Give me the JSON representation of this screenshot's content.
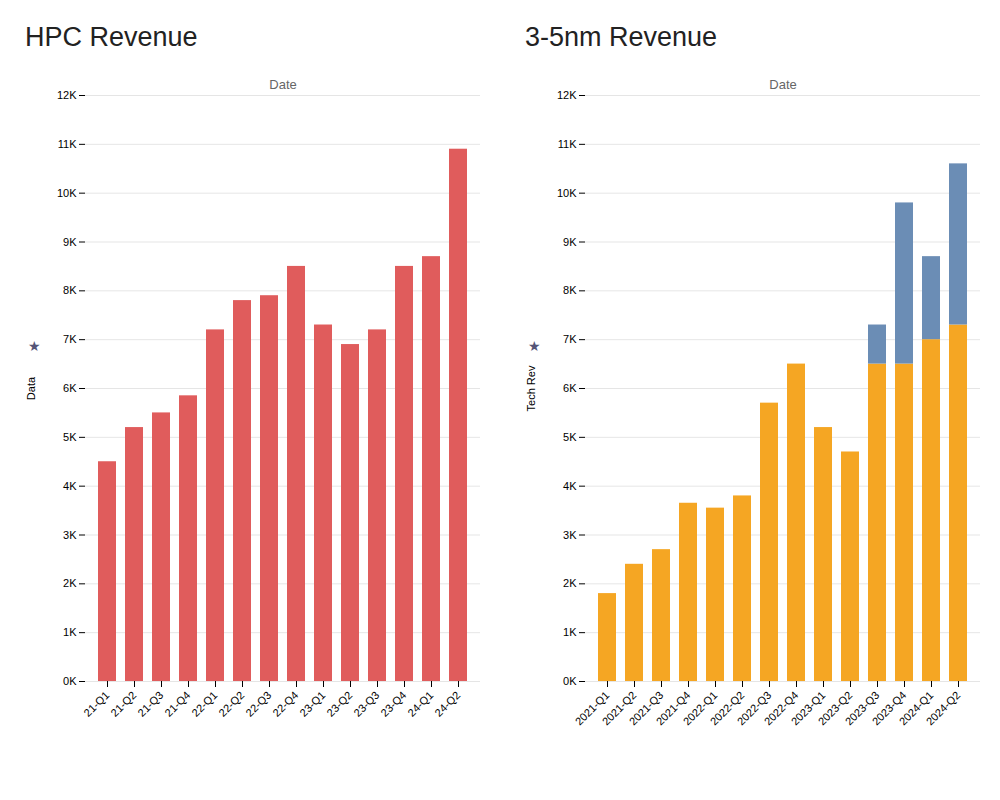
{
  "chart_data": [
    {
      "type": "bar",
      "title": "HPC Revenue",
      "xlabel": "Date",
      "ylabel": "Data",
      "annotations": [
        "★"
      ],
      "categories": [
        "21-Q1",
        "21-Q2",
        "21-Q3",
        "21-Q4",
        "22-Q1",
        "22-Q2",
        "22-Q3",
        "22-Q4",
        "23-Q1",
        "23-Q2",
        "23-Q3",
        "23-Q4",
        "24-Q1",
        "24-Q2"
      ],
      "values": [
        4500,
        5200,
        5500,
        5850,
        7200,
        7800,
        7900,
        8500,
        7300,
        6900,
        7200,
        8500,
        8700,
        10900
      ],
      "color": "#E05C5C",
      "ylim": [
        0,
        12000
      ],
      "yticks": [
        {
          "value": 0,
          "label": "0K"
        },
        {
          "value": 1000,
          "label": "1K"
        },
        {
          "value": 2000,
          "label": "2K"
        },
        {
          "value": 3000,
          "label": "3K"
        },
        {
          "value": 4000,
          "label": "4K"
        },
        {
          "value": 5000,
          "label": "5K"
        },
        {
          "value": 6000,
          "label": "6K"
        },
        {
          "value": 7000,
          "label": "7K"
        },
        {
          "value": 8000,
          "label": "8K"
        },
        {
          "value": 9000,
          "label": "9K"
        },
        {
          "value": 10000,
          "label": "10K"
        },
        {
          "value": 11000,
          "label": "11K"
        },
        {
          "value": 12000,
          "label": "12K"
        }
      ],
      "grid": true
    },
    {
      "type": "bar",
      "title": "3-5nm Revenue",
      "xlabel": "Date",
      "ylabel": "Tech Rev",
      "annotations": [
        "★"
      ],
      "categories": [
        "2021-Q1",
        "2021-Q2",
        "2021-Q3",
        "2021-Q4",
        "2022-Q1",
        "2022-Q2",
        "2022-Q3",
        "2022-Q4",
        "2023-Q1",
        "2023-Q2",
        "2023-Q3",
        "2023-Q4",
        "2024-Q1",
        "2024-Q2"
      ],
      "series": [
        {
          "color": "#F5A623",
          "values": [
            1800,
            2400,
            2700,
            3650,
            3550,
            3800,
            5700,
            6500,
            5200,
            4700,
            6500,
            6500,
            7000,
            7300
          ]
        },
        {
          "color": "#6B8DB5",
          "values": [
            0,
            0,
            0,
            0,
            0,
            0,
            0,
            0,
            0,
            0,
            800,
            3300,
            1700,
            3300
          ]
        }
      ],
      "stacked": true,
      "ylim": [
        0,
        12000
      ],
      "yticks": [
        {
          "value": 0,
          "label": "0K"
        },
        {
          "value": 1000,
          "label": "1K"
        },
        {
          "value": 2000,
          "label": "2K"
        },
        {
          "value": 3000,
          "label": "3K"
        },
        {
          "value": 4000,
          "label": "4K"
        },
        {
          "value": 5000,
          "label": "5K"
        },
        {
          "value": 6000,
          "label": "6K"
        },
        {
          "value": 7000,
          "label": "7K"
        },
        {
          "value": 8000,
          "label": "8K"
        },
        {
          "value": 9000,
          "label": "9K"
        },
        {
          "value": 10000,
          "label": "10K"
        },
        {
          "value": 11000,
          "label": "11K"
        },
        {
          "value": 12000,
          "label": "12K"
        }
      ],
      "grid": true
    }
  ]
}
